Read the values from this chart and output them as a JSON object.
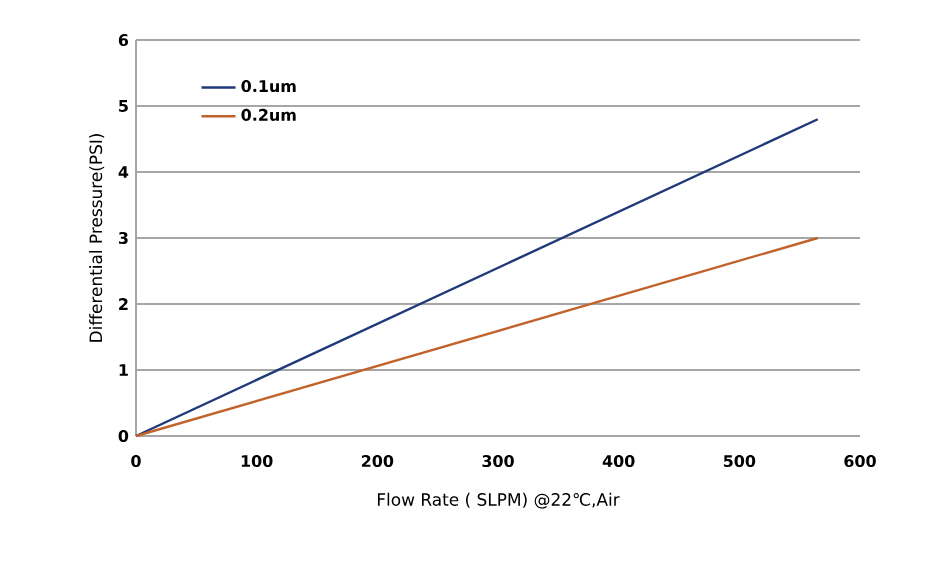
{
  "chart_data": {
    "type": "line",
    "xlabel": "Flow Rate ( SLPM) @22℃,Air",
    "ylabel": "Differential Pressure(PSI)",
    "x": [
      0,
      565
    ],
    "series": [
      {
        "name": "0.1um",
        "color": "#1f3a7a",
        "values": [
          0,
          4.8
        ]
      },
      {
        "name": "0.2um",
        "color": "#c0622a",
        "values": [
          0,
          3.0
        ]
      }
    ],
    "xlim": [
      0,
      600
    ],
    "xticks": [
      0,
      100,
      200,
      300,
      400,
      500,
      600
    ],
    "ylim": [
      0,
      6
    ],
    "yticks": [
      0,
      1,
      2,
      3,
      4,
      5,
      6
    ],
    "grid": "y",
    "legend": "top left",
    "marker": "none",
    "line_style": "solid"
  }
}
